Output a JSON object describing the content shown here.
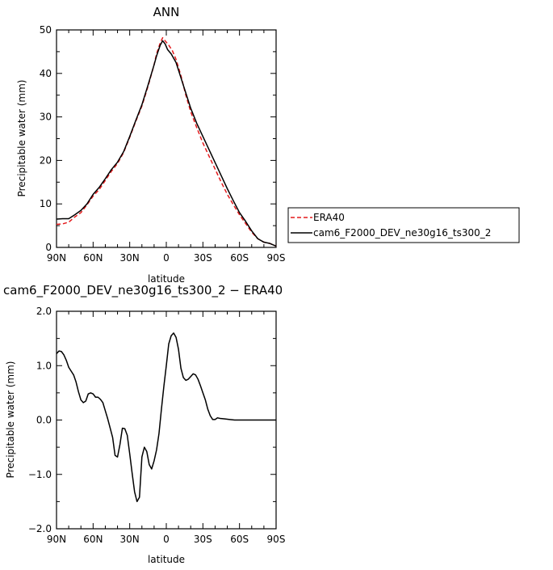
{
  "chart_data": [
    {
      "type": "line",
      "title": "ANN",
      "xlabel": "latitude",
      "ylabel": "Precipitable water (mm)",
      "xlim": [
        90,
        -90
      ],
      "ylim": [
        0,
        50
      ],
      "x_tick_values": [
        90,
        60,
        30,
        0,
        -30,
        -60,
        -90
      ],
      "x_tick_labels": [
        "90N",
        "60N",
        "30N",
        "0",
        "30S",
        "60S",
        "90S"
      ],
      "y_tick_values": [
        0,
        10,
        20,
        30,
        40,
        50
      ],
      "y_tick_labels": [
        "0",
        "10",
        "20",
        "30",
        "40",
        "50"
      ],
      "grid": false,
      "legend_position": "right",
      "series": [
        {
          "name": "ERA40",
          "color": "#e41a1c",
          "style": "dashed",
          "points": [
            [
              90,
              5.3
            ],
            [
              85,
              5.4
            ],
            [
              80,
              5.8
            ],
            [
              75,
              7.0
            ],
            [
              70,
              8.0
            ],
            [
              65,
              9.8
            ],
            [
              60,
              11.8
            ],
            [
              55,
              13.3
            ],
            [
              50,
              15.4
            ],
            [
              45,
              17.5
            ],
            [
              40,
              19.3
            ],
            [
              35,
              21.8
            ],
            [
              30,
              25.3
            ],
            [
              25,
              29.0
            ],
            [
              20,
              32.5
            ],
            [
              15,
              37.0
            ],
            [
              10,
              42.0
            ],
            [
              8,
              44.5
            ],
            [
              5,
              47.0
            ],
            [
              3,
              48.2
            ],
            [
              1,
              47.5
            ],
            [
              -2,
              46.5
            ],
            [
              -5,
              45.2
            ],
            [
              -8,
              43.2
            ],
            [
              -12,
              39.5
            ],
            [
              -16,
              35.0
            ],
            [
              -20,
              31.2
            ],
            [
              -25,
              27.5
            ],
            [
              -30,
              24.0
            ],
            [
              -35,
              21.0
            ],
            [
              -40,
              18.0
            ],
            [
              -45,
              15.0
            ],
            [
              -50,
              12.2
            ],
            [
              -55,
              9.8
            ],
            [
              -60,
              7.5
            ],
            [
              -65,
              5.5
            ],
            [
              -70,
              3.5
            ],
            [
              -75,
              2.0
            ],
            [
              -80,
              1.2
            ],
            [
              -85,
              0.9
            ],
            [
              -90,
              0.3
            ]
          ]
        },
        {
          "name": "cam6_F2000_DEV_ne30g16_ts300_2",
          "color": "#000000",
          "style": "solid",
          "points": [
            [
              90,
              6.5
            ],
            [
              85,
              6.6
            ],
            [
              80,
              6.6
            ],
            [
              75,
              7.5
            ],
            [
              70,
              8.5
            ],
            [
              65,
              10.0
            ],
            [
              60,
              12.2
            ],
            [
              55,
              13.8
            ],
            [
              50,
              15.8
            ],
            [
              45,
              17.9
            ],
            [
              40,
              19.6
            ],
            [
              35,
              22.0
            ],
            [
              30,
              25.5
            ],
            [
              25,
              29.2
            ],
            [
              20,
              32.8
            ],
            [
              15,
              37.3
            ],
            [
              10,
              42.0
            ],
            [
              8,
              44.0
            ],
            [
              5,
              46.5
            ],
            [
              3,
              47.5
            ],
            [
              1,
              46.8
            ],
            [
              -1,
              45.5
            ],
            [
              -4,
              44.5
            ],
            [
              -8,
              42.5
            ],
            [
              -12,
              39.0
            ],
            [
              -16,
              35.5
            ],
            [
              -20,
              32.0
            ],
            [
              -25,
              28.5
            ],
            [
              -30,
              25.5
            ],
            [
              -35,
              22.5
            ],
            [
              -40,
              19.5
            ],
            [
              -45,
              16.5
            ],
            [
              -50,
              13.5
            ],
            [
              -55,
              10.7
            ],
            [
              -60,
              8.0
            ],
            [
              -65,
              6.0
            ],
            [
              -70,
              3.8
            ],
            [
              -75,
              2.0
            ],
            [
              -80,
              1.2
            ],
            [
              -85,
              0.9
            ],
            [
              -90,
              0.3
            ]
          ]
        }
      ]
    },
    {
      "type": "line",
      "title": "cam6_F2000_DEV_ne30g16_ts300_2 − ERA40",
      "xlabel": "latitude",
      "ylabel": "Precipitable water (mm)",
      "xlim": [
        90,
        -90
      ],
      "ylim": [
        -2.0,
        2.0
      ],
      "x_tick_values": [
        90,
        60,
        30,
        0,
        -30,
        -60,
        -90
      ],
      "x_tick_labels": [
        "90N",
        "60N",
        "30N",
        "0",
        "30S",
        "60S",
        "90S"
      ],
      "y_tick_values": [
        -2,
        -1,
        0,
        1,
        2
      ],
      "y_tick_labels": [
        "−2.0",
        "−1.0",
        "0.0",
        "1.0",
        "2.0"
      ],
      "grid": false,
      "series": [
        {
          "color": "#000000",
          "style": "solid",
          "points": [
            [
              90,
              1.22
            ],
            [
              88,
              1.27
            ],
            [
              86,
              1.26
            ],
            [
              84,
              1.2
            ],
            [
              82,
              1.1
            ],
            [
              80,
              0.97
            ],
            [
              78,
              0.9
            ],
            [
              76,
              0.83
            ],
            [
              74,
              0.7
            ],
            [
              72,
              0.52
            ],
            [
              70,
              0.37
            ],
            [
              68,
              0.32
            ],
            [
              66,
              0.35
            ],
            [
              64,
              0.48
            ],
            [
              62,
              0.5
            ],
            [
              60,
              0.48
            ],
            [
              58,
              0.42
            ],
            [
              56,
              0.42
            ],
            [
              54,
              0.38
            ],
            [
              52,
              0.32
            ],
            [
              50,
              0.17
            ],
            [
              48,
              0.02
            ],
            [
              46,
              -0.15
            ],
            [
              44,
              -0.32
            ],
            [
              42,
              -0.65
            ],
            [
              40,
              -0.68
            ],
            [
              38,
              -0.45
            ],
            [
              36,
              -0.15
            ],
            [
              34,
              -0.16
            ],
            [
              32,
              -0.28
            ],
            [
              30,
              -0.62
            ],
            [
              28,
              -0.98
            ],
            [
              26,
              -1.32
            ],
            [
              24,
              -1.5
            ],
            [
              22,
              -1.42
            ],
            [
              20,
              -0.68
            ],
            [
              18,
              -0.5
            ],
            [
              16,
              -0.58
            ],
            [
              14,
              -0.82
            ],
            [
              12,
              -0.9
            ],
            [
              10,
              -0.75
            ],
            [
              8,
              -0.55
            ],
            [
              6,
              -0.25
            ],
            [
              4,
              0.2
            ],
            [
              2,
              0.62
            ],
            [
              0,
              1.0
            ],
            [
              -2,
              1.4
            ],
            [
              -4,
              1.55
            ],
            [
              -6,
              1.6
            ],
            [
              -8,
              1.52
            ],
            [
              -10,
              1.3
            ],
            [
              -12,
              0.95
            ],
            [
              -14,
              0.78
            ],
            [
              -16,
              0.73
            ],
            [
              -18,
              0.75
            ],
            [
              -20,
              0.8
            ],
            [
              -22,
              0.85
            ],
            [
              -24,
              0.83
            ],
            [
              -26,
              0.75
            ],
            [
              -28,
              0.63
            ],
            [
              -30,
              0.5
            ],
            [
              -32,
              0.37
            ],
            [
              -34,
              0.2
            ],
            [
              -36,
              0.08
            ],
            [
              -38,
              0.01
            ],
            [
              -40,
              0.01
            ],
            [
              -42,
              0.04
            ],
            [
              -44,
              0.03
            ],
            [
              -48,
              0.02
            ],
            [
              -52,
              0.01
            ],
            [
              -56,
              0.0
            ],
            [
              -60,
              0.0
            ],
            [
              -90,
              0.0
            ]
          ]
        }
      ]
    }
  ]
}
